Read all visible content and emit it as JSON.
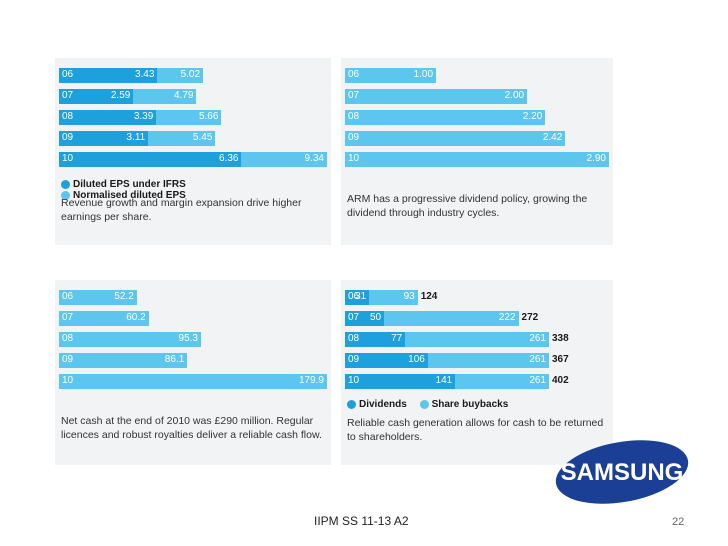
{
  "colors": {
    "dark": "#1ea0dc",
    "light": "#5cc6ee",
    "total_text": "#1a1a1a"
  },
  "panels": [
    {
      "id": "eps",
      "chart_data": {
        "type": "bar",
        "title": "",
        "categories": [
          "06",
          "07",
          "08",
          "09",
          "10"
        ],
        "series": [
          {
            "name": "Diluted EPS under IFRS",
            "values": [
              3.43,
              2.59,
              3.39,
              3.11,
              6.36
            ]
          },
          {
            "name": "Normalised diluted EPS",
            "values": [
              5.02,
              4.79,
              5.66,
              5.45,
              9.34
            ]
          }
        ],
        "mode": "overlay",
        "xlim": [
          0,
          9.34
        ]
      },
      "labels": {
        "categories": [
          "06",
          "07",
          "08",
          "09",
          "10"
        ],
        "s0": [
          "3.43",
          "2.59",
          "3.39",
          "3.11",
          "6.36"
        ],
        "s1": [
          "5.02",
          "4.79",
          "5.66",
          "5.45",
          "9.34"
        ]
      },
      "legend": [
        "Diluted EPS under IFRS",
        "Normalised diluted EPS"
      ],
      "caption": "Revenue growth and margin expansion drive higher earnings per share."
    },
    {
      "id": "dividend",
      "chart_data": {
        "type": "bar",
        "title": "",
        "categories": [
          "06",
          "07",
          "08",
          "09",
          "10"
        ],
        "series": [
          {
            "values": [
              1.0,
              2.0,
              2.2,
              2.42,
              2.9
            ]
          }
        ],
        "xlim": [
          0,
          2.9
        ]
      },
      "labels": {
        "categories": [
          "06",
          "07",
          "08",
          "09",
          "10"
        ],
        "s0": [
          "1.00",
          "2.00",
          "2.20",
          "2.42",
          "2.90"
        ]
      },
      "caption": "ARM has a progressive dividend policy, growing the dividend through industry cycles."
    },
    {
      "id": "cash",
      "chart_data": {
        "type": "bar",
        "title": "",
        "categories": [
          "06",
          "07",
          "08",
          "09",
          "10"
        ],
        "series": [
          {
            "values": [
              52.2,
              60.2,
              95.3,
              86.1,
              179.9
            ]
          }
        ],
        "xlim": [
          0,
          179.9
        ]
      },
      "labels": {
        "categories": [
          "06",
          "07",
          "08",
          "09",
          "10"
        ],
        "s0": [
          "52.2",
          "60.2",
          "95.3",
          "86.1",
          "179.9"
        ]
      },
      "caption": "Net cash at the end of 2010 was £290 million. Regular licences and robust royalties deliver a reliable cash flow."
    },
    {
      "id": "returns",
      "chart_data": {
        "type": "bar",
        "title": "",
        "categories": [
          "06",
          "07",
          "08",
          "09",
          "10"
        ],
        "series": [
          {
            "name": "Dividends",
            "values": [
              31,
              50,
              77,
              106,
              141
            ]
          },
          {
            "name": "Share buybacks",
            "values": [
              93,
              222,
              261,
              261,
              261
            ]
          }
        ],
        "totals": [
          124,
          272,
          338,
          367,
          402
        ],
        "mode": "overlay",
        "xlim": [
          0,
          261
        ]
      },
      "labels": {
        "categories": [
          "06",
          "07",
          "08",
          "09",
          "10"
        ],
        "s0": [
          "31",
          "50",
          "77",
          "106",
          "141"
        ],
        "s1": [
          "93",
          "222",
          "261",
          "261",
          "261"
        ],
        "totals": [
          "124",
          "272",
          "338",
          "367",
          "402"
        ]
      },
      "legend": [
        "Dividends",
        "Share buybacks"
      ],
      "caption": "Reliable cash generation allows for cash to be returned to shareholders."
    }
  ],
  "footer": {
    "center": "IIPM SS 11-13 A2",
    "page": "22"
  },
  "logo": {
    "text": "SAMSUNG"
  }
}
